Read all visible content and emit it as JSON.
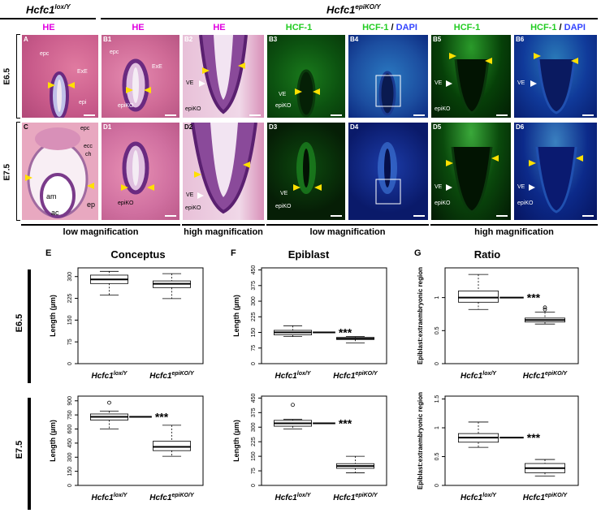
{
  "genotypes": {
    "lox": {
      "base": "Hcfc1",
      "sup": "lox/Y"
    },
    "epiko": {
      "base": "Hcfc1",
      "sup": "epiKO/Y"
    }
  },
  "stains": {
    "he": "HE",
    "hcf1": "HCF-1",
    "slash": " / ",
    "dapi": "DAPI"
  },
  "rows": {
    "e65": "E6.5",
    "e75": "E7.5"
  },
  "panels": {
    "A": "A",
    "B1": "B1",
    "B2": "B2",
    "B3": "B3",
    "B4": "B4",
    "B5": "B5",
    "B6": "B6",
    "C": "C",
    "D1": "D1",
    "D2": "D2",
    "D3": "D3",
    "D4": "D4",
    "D5": "D5",
    "D6": "D6"
  },
  "annotations": {
    "epc": "epc",
    "exe": "ExE",
    "epi": "epi",
    "epiko": "epiKO",
    "ve": "VE",
    "ecc": "ecc",
    "ch": "ch",
    "am": "am",
    "ac": "ac",
    "ep": "ep"
  },
  "magnification": {
    "low": "low magnification",
    "high": "high magnification"
  },
  "graphs": {
    "E": {
      "letter": "E",
      "title": "Conceptus"
    },
    "F": {
      "letter": "F",
      "title": "Epiblast"
    },
    "G": {
      "letter": "G",
      "title": "Ratio"
    }
  },
  "stars": "***",
  "colors": {
    "he_bg": "#d86a96",
    "he_dark": "#7a2a80",
    "fluor_bg": "#062a08",
    "green": "#2bbf2b",
    "blue": "#1838c8",
    "yellow": "#ffe000",
    "magenta": "#e000e0"
  },
  "chart_data": [
    {
      "id": "E-E6.5",
      "type": "box",
      "title": "Conceptus",
      "row": "E6.5",
      "ylabel": "Length (µm)",
      "yticks": [
        0,
        75,
        150,
        225,
        300
      ],
      "ylim": [
        0,
        330
      ],
      "categories": [
        "Hcfc1 lox/Y",
        "Hcfc1 epiKO/Y"
      ],
      "boxes": [
        {
          "min": 236,
          "q1": 276,
          "median": 290,
          "q3": 305,
          "max": 318,
          "outliers": []
        },
        {
          "min": 224,
          "q1": 262,
          "median": 275,
          "q3": 285,
          "max": 310,
          "outliers": []
        }
      ],
      "significance": ""
    },
    {
      "id": "F-E6.5",
      "type": "box",
      "title": "Epiblast",
      "row": "E6.5",
      "ylabel": "Length (µm)",
      "yticks": [
        0,
        75,
        150,
        225,
        300,
        375,
        450
      ],
      "ylim": [
        0,
        460
      ],
      "categories": [
        "Hcfc1 lox/Y",
        "Hcfc1 epiKO/Y"
      ],
      "boxes": [
        {
          "min": 130,
          "q1": 138,
          "median": 150,
          "q3": 160,
          "max": 182,
          "outliers": []
        },
        {
          "min": 100,
          "q1": 116,
          "median": 120,
          "q3": 126,
          "max": 130,
          "outliers": []
        }
      ],
      "significance": "***"
    },
    {
      "id": "G-E6.5",
      "type": "box",
      "title": "Ratio",
      "row": "E6.5",
      "ylabel": "Epiblast:extraembryonic region",
      "yticks": [
        0,
        0.5,
        1.0
      ],
      "ylim": [
        0,
        1.45
      ],
      "categories": [
        "Hcfc1 lox/Y",
        "Hcfc1 epiKO/Y"
      ],
      "boxes": [
        {
          "min": 0.82,
          "q1": 0.93,
          "median": 1.0,
          "q3": 1.1,
          "max": 1.35,
          "outliers": []
        },
        {
          "min": 0.6,
          "q1": 0.63,
          "median": 0.66,
          "q3": 0.69,
          "max": 0.78,
          "outliers": [
            0.82,
            0.85
          ]
        }
      ],
      "significance": "***"
    },
    {
      "id": "E-E7.5",
      "type": "box",
      "title": "Conceptus",
      "row": "E7.5",
      "ylabel": "Length (µm)",
      "yticks": [
        0,
        150,
        300,
        450,
        600,
        750,
        900
      ],
      "ylim": [
        0,
        950
      ],
      "categories": [
        "Hcfc1 lox/Y",
        "Hcfc1 epiKO/Y"
      ],
      "boxes": [
        {
          "min": 600,
          "q1": 695,
          "median": 730,
          "q3": 760,
          "max": 790,
          "outliers": [
            880
          ]
        },
        {
          "min": 310,
          "q1": 370,
          "median": 410,
          "q3": 470,
          "max": 640,
          "outliers": []
        }
      ],
      "significance": "***"
    },
    {
      "id": "F-E7.5",
      "type": "box",
      "title": "Epiblast",
      "row": "E7.5",
      "ylabel": "Length (µm)",
      "yticks": [
        0,
        75,
        150,
        225,
        300,
        375,
        450
      ],
      "ylim": [
        0,
        460
      ],
      "categories": [
        "Hcfc1 lox/Y",
        "Hcfc1 epiKO/Y"
      ],
      "boxes": [
        {
          "min": 290,
          "q1": 305,
          "median": 320,
          "q3": 335,
          "max": 340,
          "outliers": [
            415
          ]
        },
        {
          "min": 65,
          "q1": 88,
          "median": 100,
          "q3": 112,
          "max": 150,
          "outliers": []
        }
      ],
      "significance": "***"
    },
    {
      "id": "G-E7.5",
      "type": "box",
      "title": "Ratio",
      "row": "E7.5",
      "ylabel": "Epiblast:extraembryonic region",
      "yticks": [
        0,
        0.5,
        1.0,
        1.5
      ],
      "ylim": [
        0,
        1.55
      ],
      "categories": [
        "Hcfc1 lox/Y",
        "Hcfc1 epiKO/Y"
      ],
      "boxes": [
        {
          "min": 0.66,
          "q1": 0.75,
          "median": 0.83,
          "q3": 0.9,
          "max": 1.1,
          "outliers": []
        },
        {
          "min": 0.16,
          "q1": 0.22,
          "median": 0.3,
          "q3": 0.38,
          "max": 0.45,
          "outliers": []
        }
      ],
      "significance": "***"
    }
  ]
}
